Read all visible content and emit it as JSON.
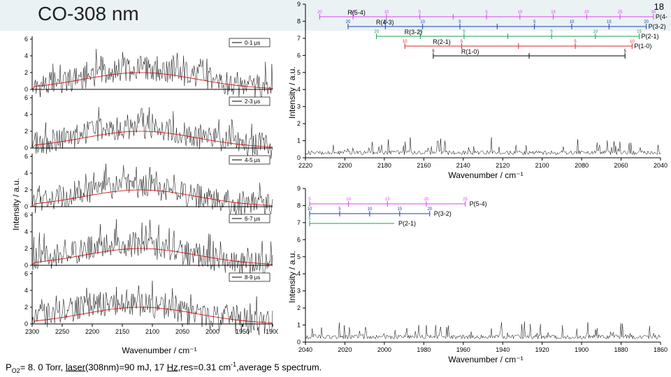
{
  "title": "CO-308 nm",
  "page_number": "18",
  "caption_parts": {
    "p1": "P",
    "sub": "O2",
    "p2": "= 8. 0 Torr, ",
    "u1": "laser",
    "p3": "(308nm)=90 mJ, 17 ",
    "u2": "Hz,",
    "p4": "res=0.31 cm",
    "sup1": "-1",
    "p5": ",average 5 spectrum."
  },
  "left_chart": {
    "ylabel": "Intensity / a.u.",
    "xlabel": "Wavenumber / cm⁻¹",
    "x_ticks": [
      2300,
      2250,
      2200,
      2150,
      2100,
      2050,
      2000,
      1950,
      1900
    ],
    "y_max_each": 6,
    "y_ticks": [
      0,
      2,
      4,
      6
    ],
    "panels": [
      {
        "legend": "0-1 μs"
      },
      {
        "legend": "2-3 μs"
      },
      {
        "legend": "4-5 μs"
      },
      {
        "legend": "6-7 μs"
      },
      {
        "legend": "8-9 μs"
      }
    ]
  },
  "right_top": {
    "ylabel": "Intensity / a.u.",
    "xlabel": "Wavenumber / cm⁻¹",
    "x_ticks": [
      2220,
      2200,
      2180,
      2160,
      2140,
      2120,
      2100,
      2080,
      2060,
      2040
    ],
    "y_ticks": [
      0,
      1,
      2,
      3,
      4,
      5,
      6,
      7,
      8,
      9
    ],
    "branches": [
      {
        "label": "R(5-4)",
        "right": "P(4-3)",
        "color": "#d946ef",
        "row": 0,
        "ticks": [
          20,
          15,
          10,
          5,
          0,
          5,
          10,
          15,
          20,
          25,
          30
        ]
      },
      {
        "label": "R(4-3)",
        "right": "P(3-2)",
        "color": "#1e40af",
        "row": 1,
        "ticks": [
          20,
          15,
          10,
          5,
          0,
          5,
          10,
          15,
          20
        ]
      },
      {
        "label": "R(3-2)",
        "right": "P(2-1)",
        "color": "#16a34a",
        "row": 2,
        "ticks": [
          20,
          10,
          5,
          0,
          5,
          10,
          15
        ]
      },
      {
        "label": "R(2-1)",
        "right": "P(1-0)",
        "color": "#dc2626",
        "row": 3,
        "ticks": [
          10,
          5,
          0,
          5,
          10
        ]
      },
      {
        "label": "R(1-0)",
        "right": "",
        "color": "#000000",
        "row": 4,
        "ticks": [
          5,
          0,
          5
        ]
      }
    ]
  },
  "right_bot": {
    "ylabel": "Intensity / a.u.",
    "xlabel": "Wavenumber / cm⁻¹",
    "x_ticks": [
      2040,
      2020,
      2000,
      1980,
      1960,
      1940,
      1920,
      1900,
      1880,
      1860
    ],
    "y_ticks": [
      0,
      1,
      2,
      3,
      4,
      5,
      6,
      7,
      8,
      9
    ],
    "branches": [
      {
        "label": "P(5-4)",
        "color": "#d946ef",
        "row": 0,
        "ticks": [
          5,
          10,
          15,
          20,
          25
        ]
      },
      {
        "label": "P(3-2)",
        "color": "#1e40af",
        "row": 1,
        "ticks": [
          10,
          5,
          10,
          15,
          20
        ]
      },
      {
        "label": "P(2-1)",
        "color": "#16a34a",
        "row": 2,
        "ticks": [
          5
        ]
      }
    ]
  },
  "colors": {
    "bg_title": "#eaf2f4",
    "spectrum": "#000000",
    "fit": "#d00000"
  }
}
